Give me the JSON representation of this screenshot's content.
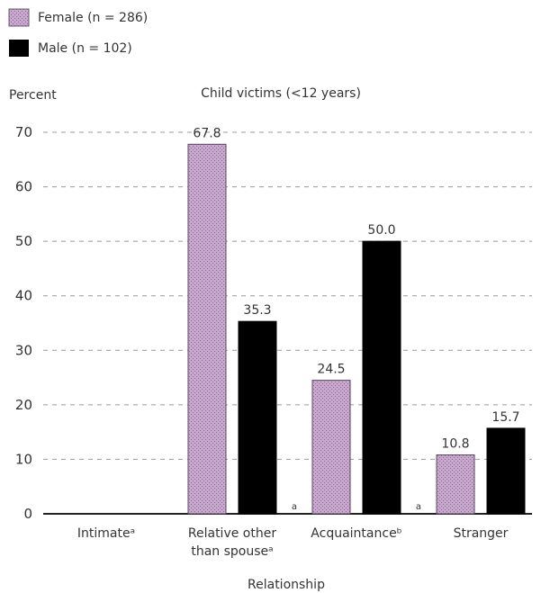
{
  "chart_data": {
    "type": "bar",
    "title": "Child victims (<12 years)",
    "xlabel": "Relationship",
    "ylabel": "Percent",
    "ylim": [
      0,
      70
    ],
    "yticks": [
      0,
      10,
      20,
      30,
      40,
      50,
      60,
      70
    ],
    "grid": true,
    "legend_position": "top-left",
    "categories": [
      [
        "Intimateᵃ"
      ],
      [
        "Relative other",
        "than spouseᵃ"
      ],
      [
        "Acquaintanceᵇ"
      ],
      [
        "Stranger"
      ]
    ],
    "series": [
      {
        "name": "Female (n = 286)",
        "values": [
          null,
          67.8,
          24.5,
          10.8
        ],
        "labels": [
          "",
          "67.8",
          "24.5",
          "10.8"
        ],
        "color": "#c7a8cc"
      },
      {
        "name": "Male (n = 102)",
        "values": [
          null,
          35.3,
          50.0,
          15.7
        ],
        "labels": [
          "",
          "35.3",
          "50.0",
          "15.7"
        ],
        "color": "#000000"
      }
    ],
    "footnote_marks": [
      "",
      "a",
      "a",
      "a"
    ]
  }
}
